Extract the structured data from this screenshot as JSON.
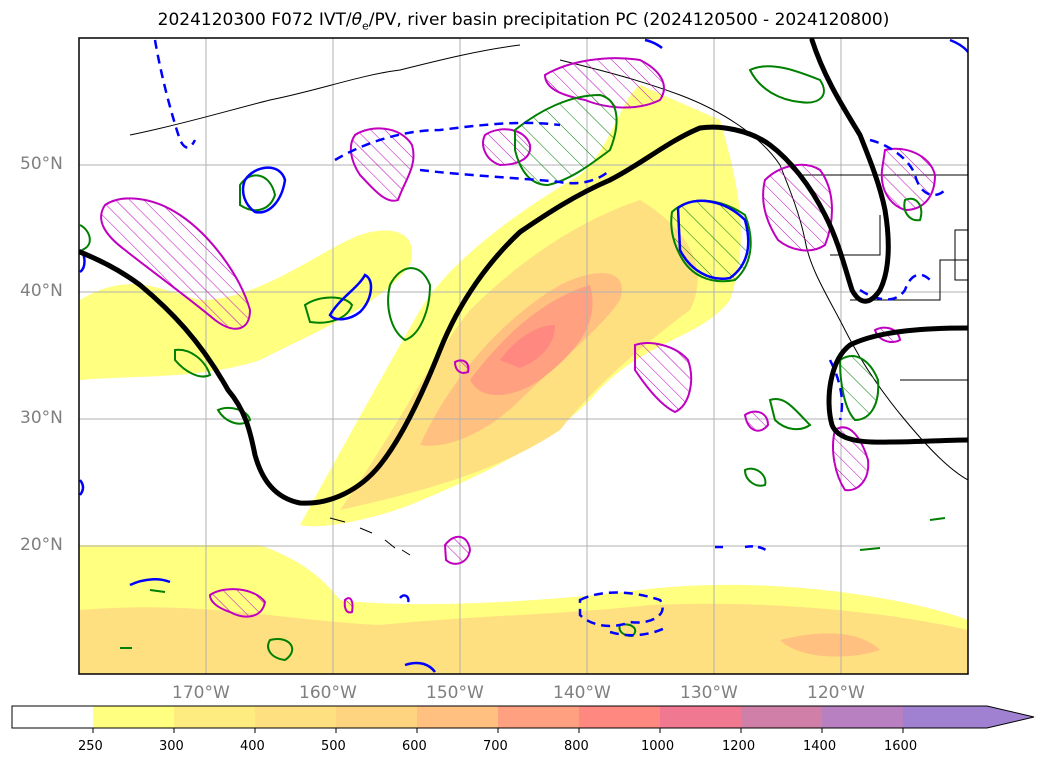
{
  "title": {
    "date": "2024120300",
    "forecast": "F072",
    "fields_prefix": "IVT/",
    "theta": "θ",
    "theta_sub": "e",
    "fields_suffix": "/PV, river basin precipitation PC",
    "period": "(2024120500 - 2024120800)"
  },
  "lat_labels": [
    "50°N",
    "40°N",
    "30°N",
    "20°N"
  ],
  "lon_labels": [
    "170°W",
    "160°W",
    "150°W",
    "140°W",
    "130°W",
    "120°W"
  ],
  "colorbar": {
    "ticks": [
      "250",
      "300",
      "400",
      "500",
      "600",
      "700",
      "800",
      "1000",
      "1200",
      "1400",
      "1600"
    ],
    "colors": [
      "#ffffff",
      "#ffff80",
      "#ffec80",
      "#ffe080",
      "#ffd480",
      "#ffc080",
      "#ffa080",
      "#ff8880",
      "#f07890",
      "#d080a8",
      "#b880c0",
      "#a080d0"
    ]
  },
  "colors": {
    "jet": "#000000",
    "pv": "#0000ff",
    "theta_e": "#008000",
    "precip_pc": "#c000c0"
  }
}
